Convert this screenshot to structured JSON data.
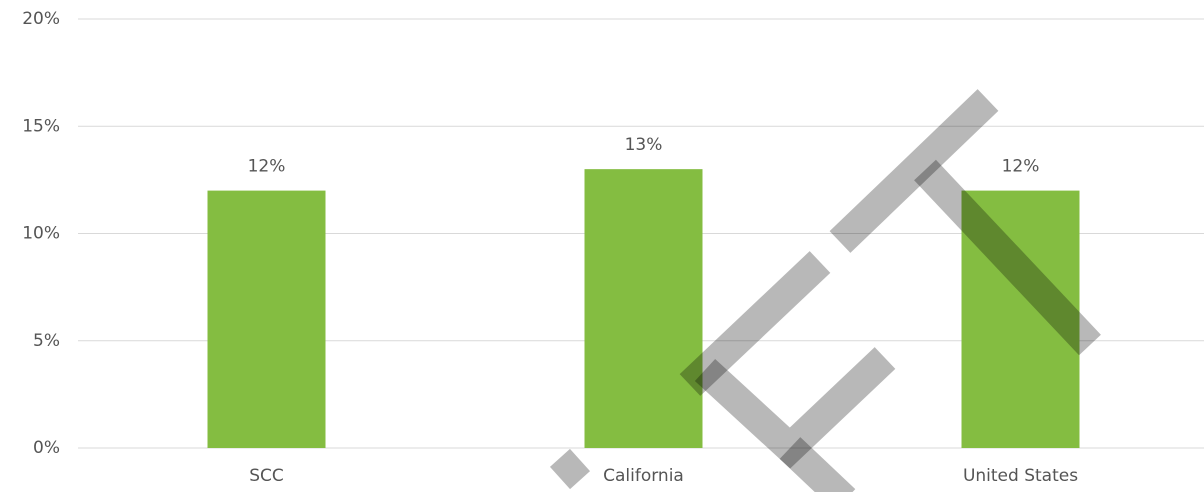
{
  "chart_data": {
    "type": "bar",
    "categories": [
      "SCC",
      "California",
      "United States"
    ],
    "values": [
      12,
      13,
      12
    ],
    "value_labels": [
      "12%",
      "13%",
      "12%"
    ],
    "color": "#84bd41",
    "ylim": [
      0,
      20
    ],
    "yticks": [
      {
        "value": 0,
        "label": "0%"
      },
      {
        "value": 5,
        "label": "5%"
      },
      {
        "value": 10,
        "label": "10%"
      },
      {
        "value": 15,
        "label": "15%"
      },
      {
        "value": 20,
        "label": "20%"
      }
    ],
    "grid": true
  }
}
